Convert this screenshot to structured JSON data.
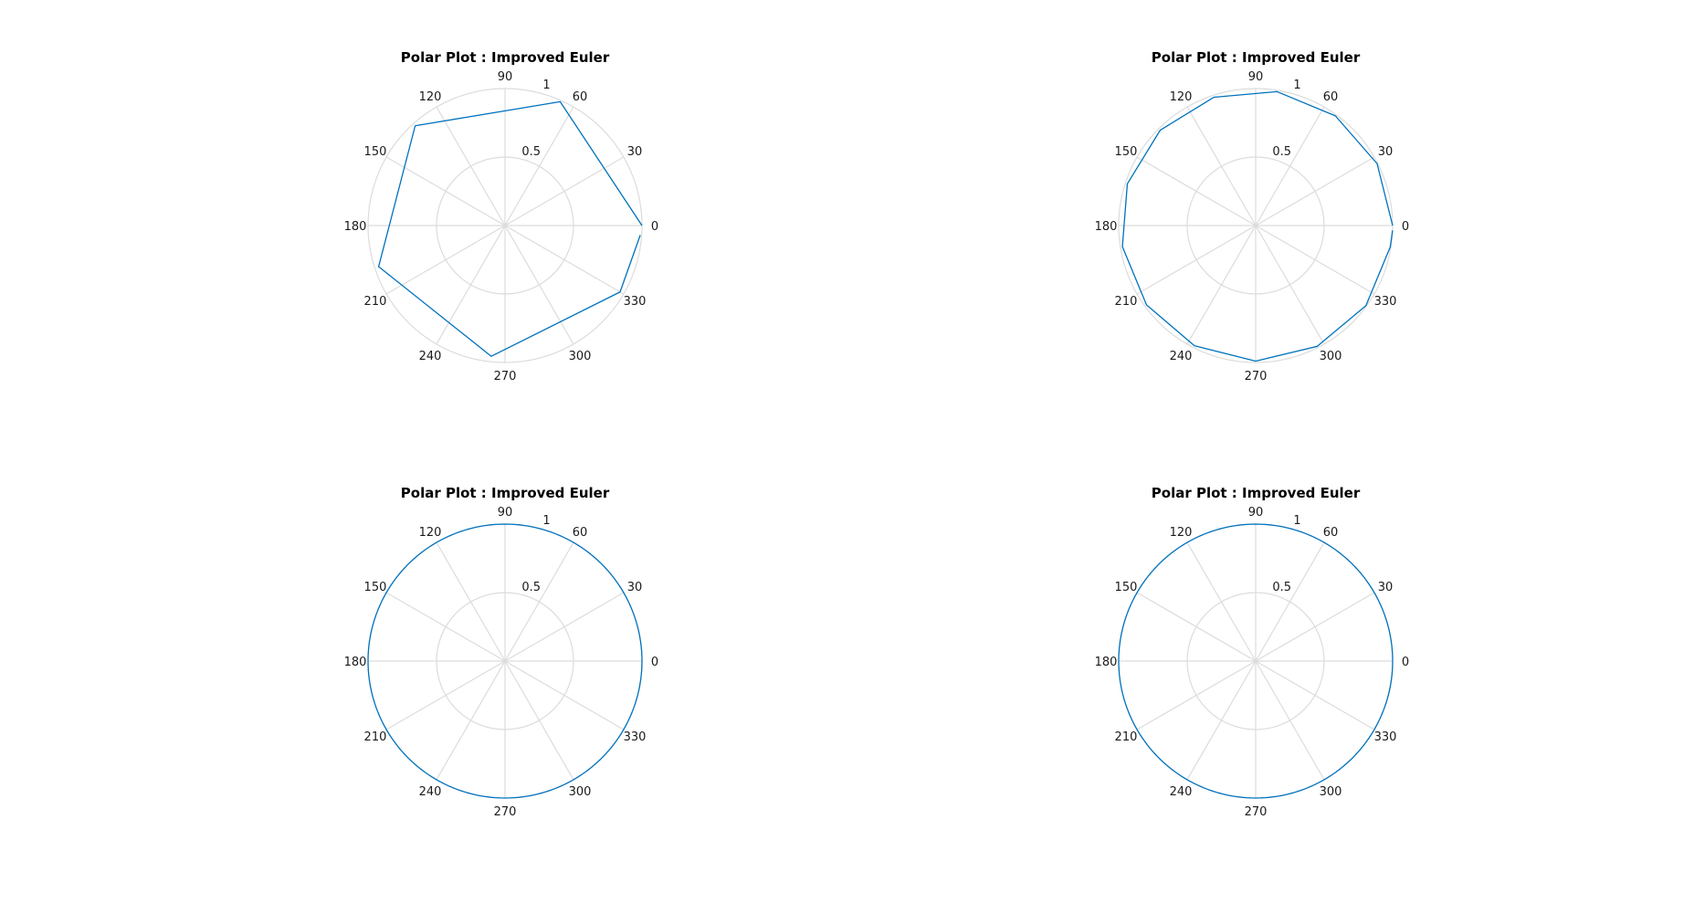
{
  "colors": {
    "series": "#0072bd",
    "grid": "#dcdcdc",
    "text": "#1a1a1a"
  },
  "chart_data": [
    {
      "type": "polar",
      "title": "Polar Plot : Improved Euler",
      "rlim": [
        0,
        1
      ],
      "r_ticks": [
        0.5,
        1
      ],
      "r_tick_labels": [
        "0.5",
        "1"
      ],
      "theta_ticks_deg": [
        0,
        30,
        60,
        90,
        120,
        150,
        180,
        210,
        240,
        270,
        300,
        330
      ],
      "theta_tick_labels": [
        "0",
        "30",
        "60",
        "90",
        "120",
        "150",
        "180",
        "210",
        "240",
        "270",
        "300",
        "330"
      ],
      "grid": true,
      "series": [
        {
          "theta_deg": [
            0,
            66,
            132,
            198,
            264,
            330,
            356
          ],
          "r": [
            1,
            0.99,
            0.98,
            0.97,
            0.96,
            0.97,
            0.99
          ]
        }
      ]
    },
    {
      "type": "polar",
      "title": "Polar Plot : Improved Euler",
      "rlim": [
        0,
        1
      ],
      "r_ticks": [
        0.5,
        1
      ],
      "r_tick_labels": [
        "0.5",
        "1"
      ],
      "theta_ticks_deg": [
        0,
        30,
        60,
        90,
        120,
        150,
        180,
        210,
        240,
        270,
        300,
        330
      ],
      "theta_tick_labels": [
        "0",
        "30",
        "60",
        "90",
        "120",
        "150",
        "180",
        "210",
        "240",
        "270",
        "300",
        "330"
      ],
      "grid": true,
      "series": [
        {
          "theta_deg": [
            0,
            27,
            54,
            81,
            108,
            135,
            162,
            189,
            216,
            243,
            270,
            297,
            324,
            351,
            358
          ],
          "r": [
            1,
            0.995,
            0.99,
            0.99,
            0.985,
            0.985,
            0.985,
            0.985,
            0.985,
            0.985,
            0.99,
            0.99,
            0.995,
            0.995,
            1
          ]
        }
      ]
    },
    {
      "type": "polar",
      "title": "Polar Plot : Improved Euler",
      "rlim": [
        0,
        1
      ],
      "r_ticks": [
        0.5,
        1
      ],
      "r_tick_labels": [
        "0.5",
        "1"
      ],
      "theta_ticks_deg": [
        0,
        30,
        60,
        90,
        120,
        150,
        180,
        210,
        240,
        270,
        300,
        330
      ],
      "theta_tick_labels": [
        "0",
        "30",
        "60",
        "90",
        "120",
        "150",
        "180",
        "210",
        "240",
        "270",
        "300",
        "330"
      ],
      "grid": true,
      "series": [
        {
          "theta_deg": [
            0,
            360
          ],
          "r": [
            1,
            1
          ],
          "curve": "circle"
        }
      ]
    },
    {
      "type": "polar",
      "title": "Polar Plot : Improved Euler",
      "rlim": [
        0,
        1
      ],
      "r_ticks": [
        0.5,
        1
      ],
      "r_tick_labels": [
        "0.5",
        "1"
      ],
      "theta_ticks_deg": [
        0,
        30,
        60,
        90,
        120,
        150,
        180,
        210,
        240,
        270,
        300,
        330
      ],
      "theta_tick_labels": [
        "0",
        "30",
        "60",
        "90",
        "120",
        "150",
        "180",
        "210",
        "240",
        "270",
        "300",
        "330"
      ],
      "grid": true,
      "series": [
        {
          "theta_deg": [
            0,
            360
          ],
          "r": [
            1,
            1
          ],
          "curve": "circle"
        }
      ]
    }
  ]
}
